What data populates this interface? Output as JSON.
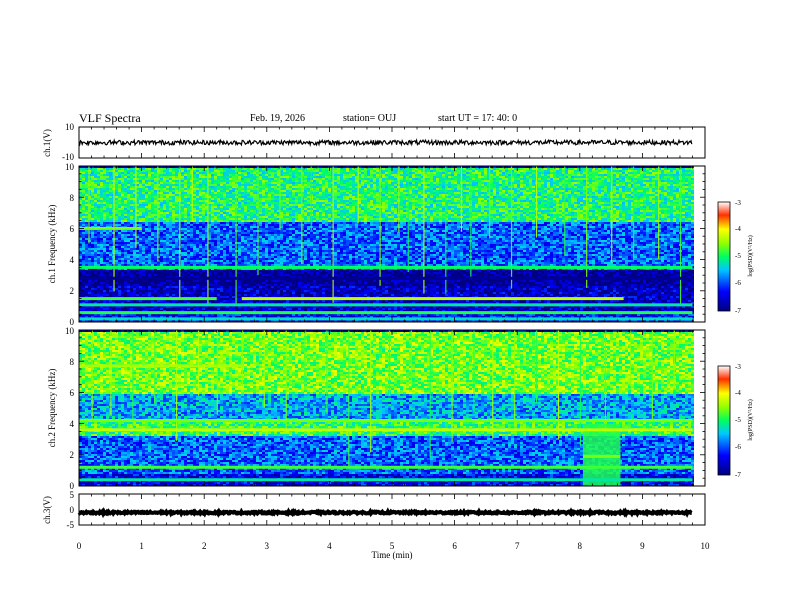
{
  "header": {
    "title": "VLF Spectra",
    "date": "Feb. 19, 2026",
    "station": "station= OUJ",
    "start": "start UT =  17: 40: 0"
  },
  "chart_data": [
    {
      "type": "line",
      "panel": "ch1-waveform",
      "ylabel": "ch.1(V)",
      "ylim": [
        -10,
        10
      ],
      "yticks": [
        "10",
        "-10"
      ],
      "xlim": [
        0,
        10
      ],
      "trace_center": 0,
      "trace_amplitude": 1.5,
      "trace_end_min": 9.8
    },
    {
      "type": "heatmap",
      "panel": "ch1-spectrogram",
      "ylabel": "ch.1 Frequency (kHz)",
      "ylim": [
        0,
        10
      ],
      "yticks": [
        "0",
        "2",
        "4",
        "6",
        "8",
        "10"
      ],
      "xlim": [
        0,
        10
      ],
      "data_end_min": 9.8,
      "colorbar": {
        "label": "log(PSD)(V²/Hz)",
        "range": [
          -7,
          -3
        ],
        "ticks": [
          "-3",
          "-4",
          "-5",
          "-6",
          "-7"
        ]
      },
      "noise_floor": [
        {
          "f0": 0,
          "f1": 0.6,
          "v": -6.3
        },
        {
          "f0": 0.6,
          "f1": 2.4,
          "v": -6.6
        },
        {
          "f0": 2.4,
          "f1": 3.4,
          "v": -6.9
        },
        {
          "f0": 3.4,
          "f1": 6.5,
          "v": -5.9
        },
        {
          "f0": 6.5,
          "f1": 10,
          "v": -5.0
        }
      ],
      "bands": [
        {
          "t0": 0,
          "t1": 9.8,
          "f": 3.5,
          "v": -5.0
        },
        {
          "t0": 0,
          "t1": 9.8,
          "f": 2.8,
          "v": -6.9
        },
        {
          "t0": 0,
          "t1": 2.2,
          "f": 1.5,
          "v": -4.8
        },
        {
          "t0": 2.6,
          "t1": 8.7,
          "f": 1.5,
          "v": -4.3
        },
        {
          "t0": 0,
          "t1": 9.8,
          "f": 1.1,
          "v": -5.2
        },
        {
          "t0": 0,
          "t1": 9.8,
          "f": 0.6,
          "v": -4.9
        },
        {
          "t0": 0,
          "t1": 9.8,
          "f": 0.2,
          "v": -5.3
        },
        {
          "t0": 0,
          "t1": 1.0,
          "f": 6.0,
          "v": -4.6
        }
      ],
      "impulses_min": [
        0.15,
        0.55,
        0.9,
        1.25,
        1.6,
        1.8,
        2.05,
        2.5,
        2.85,
        3.2,
        3.55,
        3.7,
        4.05,
        4.45,
        4.8,
        5.1,
        5.25,
        5.5,
        5.85,
        6.1,
        6.25,
        6.55,
        6.9,
        7.3,
        7.75,
        8.1,
        8.5,
        8.85,
        9.25,
        9.6
      ]
    },
    {
      "type": "heatmap",
      "panel": "ch2-spectrogram",
      "ylabel": "ch.2 Frequency (kHz)",
      "ylim": [
        0,
        10
      ],
      "yticks": [
        "0",
        "2",
        "4",
        "6",
        "8",
        "10"
      ],
      "xlim": [
        0,
        10
      ],
      "data_end_min": 9.8,
      "colorbar": {
        "label": "log(PSD)(V²/Hz)",
        "range": [
          -7,
          -3
        ],
        "ticks": [
          "-3",
          "-4",
          "-5",
          "-6",
          "-7"
        ]
      },
      "noise_floor": [
        {
          "f0": 0,
          "f1": 0.8,
          "v": -6.4
        },
        {
          "f0": 0.8,
          "f1": 3.3,
          "v": -5.9
        },
        {
          "f0": 3.3,
          "f1": 4.3,
          "v": -4.9
        },
        {
          "f0": 4.3,
          "f1": 6.0,
          "v": -5.6
        },
        {
          "f0": 6.0,
          "f1": 10,
          "v": -4.6
        }
      ],
      "bands": [
        {
          "t0": 0,
          "t1": 9.8,
          "f": 3.6,
          "v": -4.3
        },
        {
          "t0": 0,
          "t1": 9.8,
          "f": 4.2,
          "v": -4.6
        },
        {
          "t0": 8.05,
          "t1": 8.65,
          "f": 1.9,
          "v": -4.6
        },
        {
          "t0": 0,
          "t1": 9.8,
          "f": 1.2,
          "v": -4.8
        },
        {
          "t0": 0,
          "t1": 9.8,
          "f": 0.4,
          "v": -5.2
        },
        {
          "t0": 0,
          "t1": 2.6,
          "f": 7.7,
          "v": -4.4
        }
      ],
      "blocks": [
        {
          "t0": 8.05,
          "t1": 8.65,
          "f0": 0,
          "f1": 4.0,
          "v": -4.9
        }
      ],
      "impulses_min": [
        0.2,
        0.5,
        0.85,
        1.2,
        1.55,
        1.9,
        2.2,
        2.6,
        2.95,
        3.3,
        3.6,
        3.95,
        4.3,
        4.65,
        4.95,
        5.3,
        5.6,
        5.95,
        6.3,
        6.6,
        6.95,
        7.3,
        7.65,
        8.0,
        8.4,
        8.8,
        9.15,
        9.5
      ]
    },
    {
      "type": "line",
      "panel": "ch3-waveform",
      "ylabel": "ch.3(V)",
      "ylim": [
        -5,
        5
      ],
      "yticks": [
        "5",
        "0",
        "-5"
      ],
      "xlim": [
        0,
        10
      ],
      "trace_center": -1,
      "trace_amplitude": 0.3,
      "trace_end_min": 9.8,
      "xlabel": "Time (min)",
      "xticks": [
        "0",
        "1",
        "2",
        "3",
        "4",
        "5",
        "6",
        "7",
        "8",
        "9",
        "10"
      ]
    }
  ]
}
